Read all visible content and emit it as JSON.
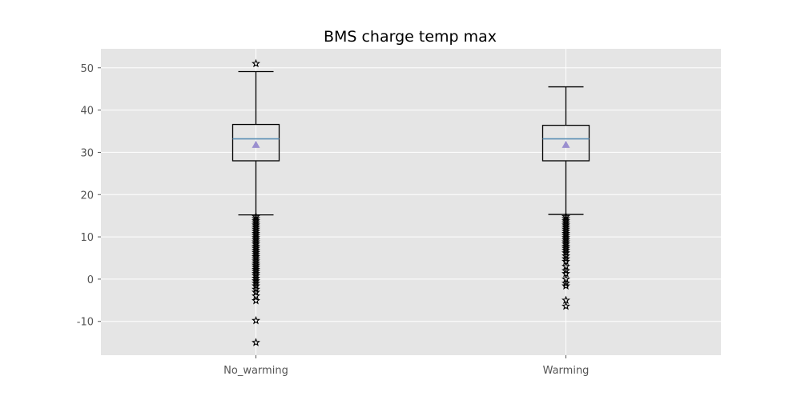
{
  "chart_data": {
    "type": "boxplot",
    "title": "BMS charge temp max",
    "xlabel": "",
    "ylabel": "",
    "ylim": [
      -18,
      54.5
    ],
    "yticks": [
      -10,
      0,
      10,
      20,
      30,
      40,
      50
    ],
    "categories": [
      "No_warming",
      "Warming"
    ],
    "grid": true,
    "boxes": [
      {
        "label": "No_warming",
        "whisker_low": 15.2,
        "q1": 28.0,
        "median": 33.2,
        "q3": 36.6,
        "whisker_high": 49.1,
        "mean": 31.8,
        "outliers": [
          51.0,
          14.8,
          14.3,
          13.8,
          13.3,
          12.8,
          12.3,
          11.8,
          11.3,
          10.8,
          10.3,
          9.8,
          9.3,
          8.8,
          8.3,
          7.8,
          7.3,
          6.8,
          6.3,
          5.8,
          5.3,
          4.8,
          4.3,
          3.8,
          3.3,
          2.8,
          2.3,
          1.8,
          1.3,
          0.8,
          0.2,
          -0.4,
          -1.0,
          -1.6,
          -2.4,
          -3.1,
          -4.0,
          -5.1,
          -9.8,
          -15.0
        ]
      },
      {
        "label": "Warming",
        "whisker_low": 15.3,
        "q1": 28.0,
        "median": 33.2,
        "q3": 36.4,
        "whisker_high": 45.5,
        "mean": 31.8,
        "outliers": [
          14.8,
          14.3,
          13.8,
          13.3,
          12.8,
          12.3,
          11.8,
          11.3,
          10.8,
          10.3,
          9.8,
          9.3,
          8.8,
          8.3,
          7.8,
          7.3,
          6.8,
          6.2,
          5.5,
          4.8,
          4.2,
          3.0,
          2.0,
          1.3,
          0.0,
          -1.0,
          -1.6,
          -5.0,
          -6.4
        ]
      }
    ],
    "colors": {
      "plot_background": "#e5e5e5",
      "grid": "#ffffff",
      "box": "#000000",
      "median": "#5b8fb5",
      "mean": "#9a8fcf",
      "outlier": "#000000"
    }
  }
}
